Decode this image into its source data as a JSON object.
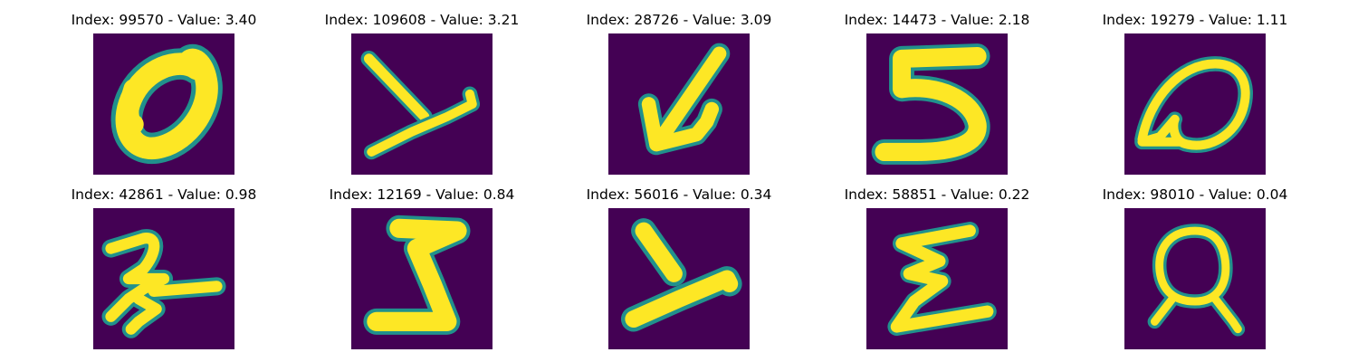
{
  "colormap": {
    "background": "#440154",
    "mid": "#21918c",
    "stroke": "#fde725"
  },
  "panels": [
    {
      "title": "Index: 99570 - Value: 3.40",
      "index": 99570,
      "value": 3.4,
      "glyph": "0"
    },
    {
      "title": "Index: 109608 - Value: 3.21",
      "index": 109608,
      "value": 3.21,
      "glyph": "y"
    },
    {
      "title": "Index: 28726 - Value: 3.09",
      "index": 28726,
      "value": 3.09,
      "glyph": "arrow"
    },
    {
      "title": "Index: 14473 - Value: 2.18",
      "index": 14473,
      "value": 2.18,
      "glyph": "5"
    },
    {
      "title": "Index: 19279 - Value: 1.11",
      "index": 19279,
      "value": 1.11,
      "glyph": "Q"
    },
    {
      "title": "Index: 42861 - Value: 0.98",
      "index": 42861,
      "value": 0.98,
      "glyph": "2"
    },
    {
      "title": "Index: 12169 - Value: 0.84",
      "index": 12169,
      "value": 0.84,
      "glyph": "Z"
    },
    {
      "title": "Index: 56016 - Value: 0.34",
      "index": 56016,
      "value": 0.34,
      "glyph": "y"
    },
    {
      "title": "Index: 58851 - Value: 0.22",
      "index": 58851,
      "value": 0.22,
      "glyph": "sigma"
    },
    {
      "title": "Index: 98010 - Value: 0.04",
      "index": 98010,
      "value": 0.04,
      "glyph": "Q"
    }
  ]
}
